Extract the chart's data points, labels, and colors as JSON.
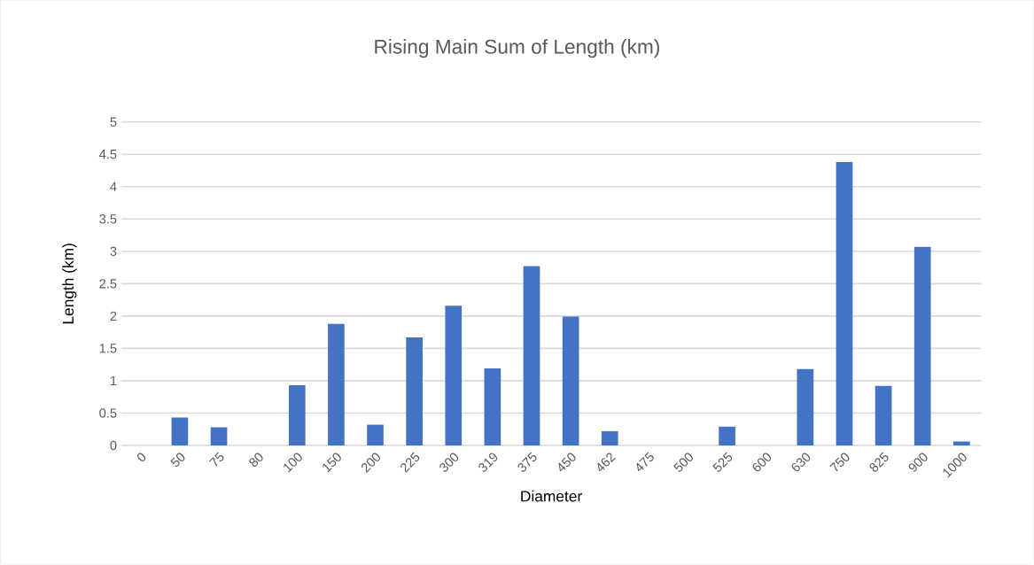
{
  "chart_data": {
    "type": "bar",
    "title": "Rising Main Sum of Length (km)",
    "xlabel": "Diameter",
    "ylabel": "Length (km)",
    "categories": [
      "0",
      "50",
      "75",
      "80",
      "100",
      "150",
      "200",
      "225",
      "300",
      "319",
      "375",
      "450",
      "462",
      "475",
      "500",
      "525",
      "600",
      "630",
      "750",
      "825",
      "900",
      "1000"
    ],
    "values": [
      0,
      0.43,
      0.28,
      0,
      0.93,
      1.88,
      0.32,
      1.67,
      2.16,
      1.19,
      2.77,
      1.99,
      0.22,
      0,
      0,
      0.29,
      0,
      1.18,
      4.38,
      0.92,
      3.07,
      0.06
    ],
    "color": "#4472c4",
    "ylim": [
      0,
      5
    ],
    "yticks": [
      0,
      0.5,
      1,
      1.5,
      2,
      2.5,
      3,
      3.5,
      4,
      4.5,
      5
    ],
    "grid": "y"
  }
}
